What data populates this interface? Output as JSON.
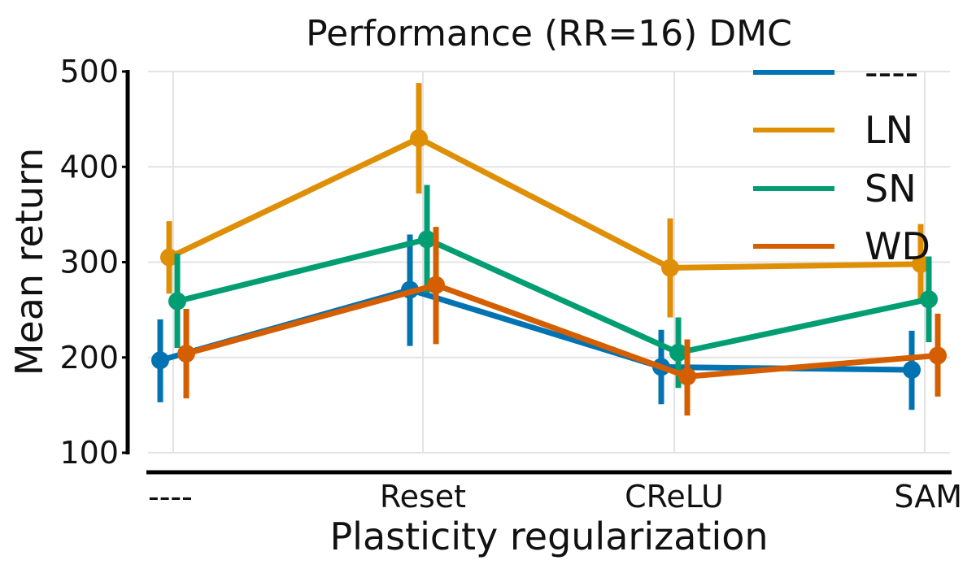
{
  "chart_data": {
    "type": "line",
    "title": "Performance (RR=16) DMC",
    "xlabel": "Plasticity regularization",
    "ylabel": "Mean return",
    "categories": [
      "----",
      "Reset",
      "CReLU",
      "SAM"
    ],
    "ylim": [
      100,
      500
    ],
    "yticks": [
      100,
      200,
      300,
      400,
      500
    ],
    "grid": true,
    "legend_position": "top-right",
    "series": [
      {
        "name": "----",
        "color": "#0173b2",
        "values": [
          197,
          271,
          190,
          187
        ],
        "lower": [
          153,
          212,
          151,
          145
        ],
        "upper": [
          240,
          329,
          229,
          228
        ]
      },
      {
        "name": "LN",
        "color": "#de8f05",
        "values": [
          305,
          430,
          294,
          298
        ],
        "lower": [
          267,
          372,
          242,
          258
        ],
        "upper": [
          343,
          488,
          346,
          340
        ]
      },
      {
        "name": "SN",
        "color": "#029e73",
        "values": [
          259,
          324,
          205,
          261
        ],
        "lower": [
          210,
          268,
          168,
          216
        ],
        "upper": [
          309,
          381,
          242,
          306
        ]
      },
      {
        "name": "WD",
        "color": "#d55e00",
        "values": [
          204,
          276,
          180,
          202
        ],
        "lower": [
          157,
          214,
          139,
          159
        ],
        "upper": [
          251,
          337,
          219,
          246
        ]
      }
    ]
  }
}
